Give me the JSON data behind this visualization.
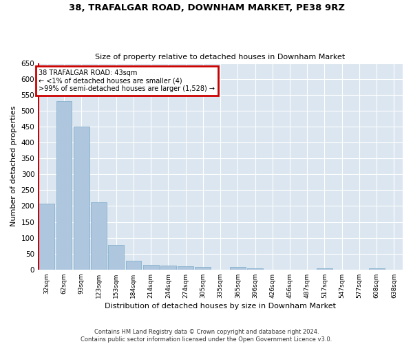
{
  "title_line1": "38, TRAFALGAR ROAD, DOWNHAM MARKET, PE38 9RZ",
  "title_line2": "Size of property relative to detached houses in Downham Market",
  "xlabel": "Distribution of detached houses by size in Downham Market",
  "ylabel": "Number of detached properties",
  "categories": [
    "32sqm",
    "62sqm",
    "93sqm",
    "123sqm",
    "153sqm",
    "184sqm",
    "214sqm",
    "244sqm",
    "274sqm",
    "305sqm",
    "335sqm",
    "365sqm",
    "396sqm",
    "426sqm",
    "456sqm",
    "487sqm",
    "517sqm",
    "547sqm",
    "577sqm",
    "608sqm",
    "638sqm"
  ],
  "values": [
    207,
    530,
    450,
    212,
    77,
    28,
    15,
    13,
    10,
    8,
    0,
    8,
    5,
    0,
    0,
    0,
    5,
    0,
    0,
    5,
    0
  ],
  "bar_color": "#aec6de",
  "bar_edge_color": "#7aaac8",
  "ylim": [
    0,
    650
  ],
  "yticks": [
    0,
    50,
    100,
    150,
    200,
    250,
    300,
    350,
    400,
    450,
    500,
    550,
    600,
    650
  ],
  "annotation_box_color": "#cc0000",
  "annotation_line1": "38 TRAFALGAR ROAD: 43sqm",
  "annotation_line2": "← <1% of detached houses are smaller (4)",
  "annotation_line3": ">99% of semi-detached houses are larger (1,528) →",
  "subject_bar_color": "#cc0000",
  "background_color": "#dce6f0",
  "grid_color": "#ffffff",
  "footer_line1": "Contains HM Land Registry data © Crown copyright and database right 2024.",
  "footer_line2": "Contains public sector information licensed under the Open Government Licence v3.0."
}
